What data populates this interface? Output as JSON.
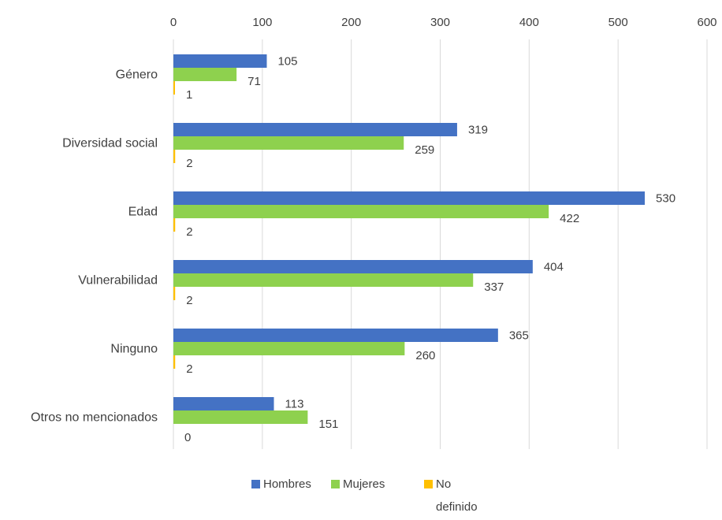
{
  "chart_data": {
    "type": "bar",
    "orientation": "horizontal",
    "categories": [
      "Género",
      "Diversidad social",
      "Edad",
      "Vulnerabilidad",
      "Ninguno",
      "Otros no mencionados"
    ],
    "series": [
      {
        "name": "Hombres",
        "values": [
          105,
          319,
          530,
          404,
          365,
          113
        ],
        "color": "#4472C4"
      },
      {
        "name": "Mujeres",
        "values": [
          71,
          259,
          422,
          337,
          260,
          151
        ],
        "color": "#8ED14E"
      },
      {
        "name": "No definido",
        "values": [
          1,
          2,
          2,
          2,
          2,
          0
        ],
        "color": "#FFC000"
      }
    ],
    "xlim": [
      0,
      600
    ],
    "x_ticks": [
      0,
      100,
      200,
      300,
      400,
      500,
      600
    ],
    "x_axis_position": "top",
    "grid": true,
    "legend": {
      "position": "bottom",
      "entries": [
        "Hombres",
        "Mujeres",
        "No definido"
      ],
      "wrapped_last_entry": [
        "No",
        "definido"
      ]
    },
    "title": "",
    "xlabel": "",
    "ylabel": ""
  }
}
